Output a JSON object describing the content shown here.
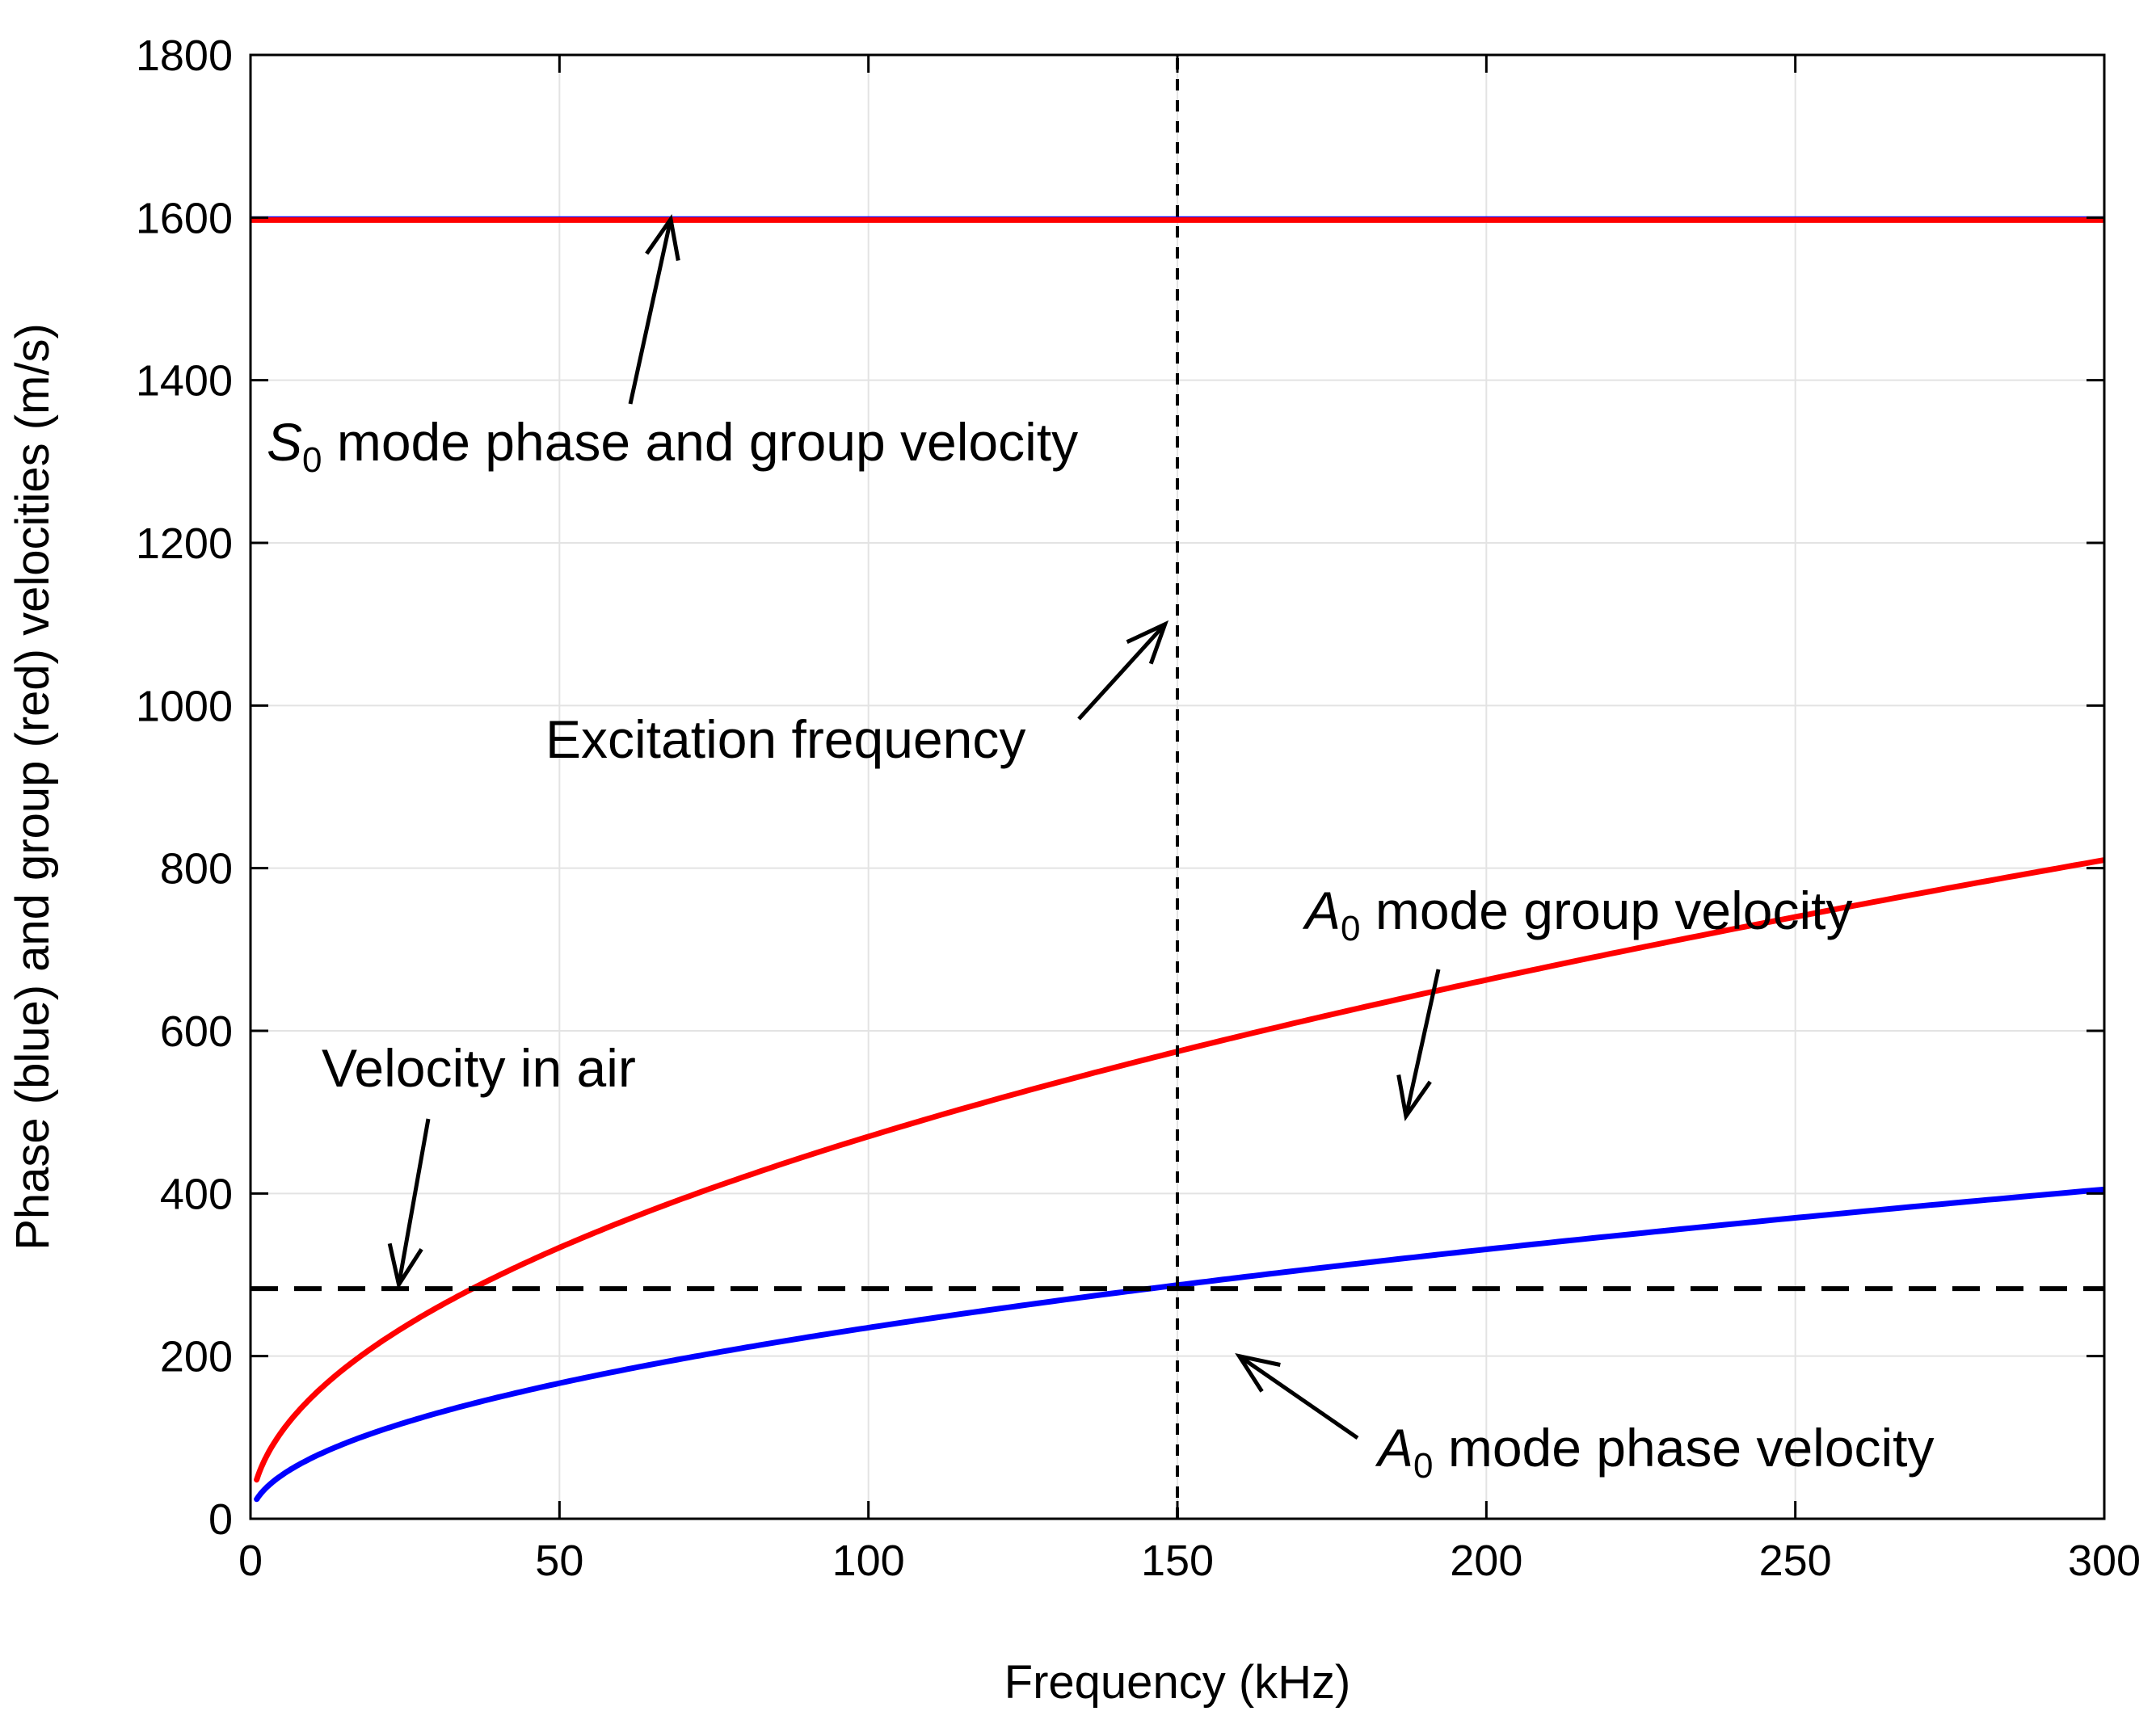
{
  "chart_data": {
    "type": "line",
    "title": "",
    "xlabel": "Frequency (kHz)",
    "ylabel": "Phase (blue) and group (red) velocities (m/s)",
    "xlim": [
      0,
      300
    ],
    "ylim": [
      0,
      1800
    ],
    "xticks": [
      0,
      50,
      100,
      150,
      200,
      250,
      300
    ],
    "yticks": [
      0,
      200,
      400,
      600,
      800,
      1000,
      1200,
      1400,
      1600,
      1800
    ],
    "grid": true,
    "series": [
      {
        "name": "S0 mode phase velocity",
        "color": "#0000ff",
        "style": "solid",
        "x": [
          0,
          50,
          100,
          150,
          200,
          250,
          300
        ],
        "y": [
          1598,
          1598,
          1598,
          1598,
          1598,
          1598,
          1598
        ]
      },
      {
        "name": "S0 mode group velocity",
        "color": "#ff0000",
        "style": "solid",
        "x": [
          0,
          50,
          100,
          150,
          200,
          250,
          300
        ],
        "y": [
          1597,
          1597,
          1597,
          1597,
          1597,
          1597,
          1597
        ]
      },
      {
        "name": "A0 mode group velocity",
        "color": "#ff0000",
        "style": "solid",
        "x": [
          1,
          2,
          5,
          10,
          20,
          30,
          50,
          75,
          100,
          150,
          200,
          250,
          300
        ],
        "y": [
          48,
          68,
          106,
          150,
          210,
          257,
          330,
          404,
          467,
          570,
          660,
          740,
          810
        ]
      },
      {
        "name": "A0 mode phase velocity",
        "color": "#0000ff",
        "style": "solid",
        "x": [
          1,
          2,
          5,
          10,
          20,
          30,
          50,
          75,
          100,
          150,
          200,
          250,
          300
        ],
        "y": [
          24,
          34,
          53,
          75,
          105,
          128,
          165,
          202,
          233,
          285,
          330,
          370,
          405
        ]
      },
      {
        "name": "Velocity in air",
        "color": "#000000",
        "style": "dashed",
        "x": [
          0,
          300
        ],
        "y": [
          283,
          283
        ]
      },
      {
        "name": "Excitation frequency",
        "color": "#000000",
        "style": "dashed",
        "x": [
          150,
          150
        ],
        "y": [
          0,
          1800
        ]
      }
    ],
    "annotations": [
      {
        "id": "s0",
        "italic": "S",
        "sub": "0",
        "text": " mode phase and group velocity",
        "arrow_to": [
          68,
          1598
        ]
      },
      {
        "id": "excitation",
        "italic": "",
        "sub": "",
        "text": "Excitation frequency",
        "arrow_to": [
          148,
          1100
        ]
      },
      {
        "id": "a0-group",
        "italic": "A",
        "sub": "0",
        "text": " mode group velocity",
        "arrow_to": [
          187,
          495
        ]
      },
      {
        "id": "air",
        "italic": "",
        "sub": "",
        "text": "Velocity in air",
        "arrow_to": [
          24,
          288
        ]
      },
      {
        "id": "a0-phase",
        "italic": "A",
        "sub": "0",
        "text": " mode phase velocity",
        "arrow_to": [
          160,
          200
        ]
      }
    ]
  }
}
